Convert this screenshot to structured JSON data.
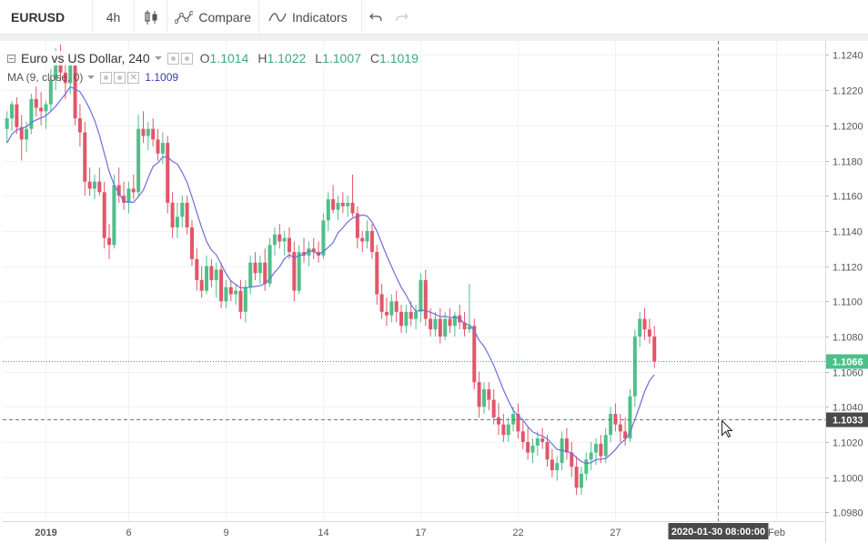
{
  "toolbar": {
    "symbol": "EURUSD",
    "interval": "4h",
    "compare_label": "Compare",
    "indicators_label": "Indicators",
    "undo_icon": "undo-icon",
    "redo_icon": "redo-icon"
  },
  "legend": {
    "title": "Euro vs US Dollar, 240",
    "open_key": "O",
    "open": "1.1014",
    "high_key": "H",
    "high": "1.1022",
    "low_key": "L",
    "low": "1.1007",
    "close_key": "C",
    "close": "1.1019",
    "ma_label": "MA (9, close, 0)",
    "ma_value": "1.1009"
  },
  "colors": {
    "up": "#4fbf8a",
    "down": "#e2566a",
    "ma": "#6b6fd8",
    "last_price_line": "#3caa5a",
    "crosshair": "#777777"
  },
  "chart_data": {
    "type": "candlestick",
    "symbol": "EURUSD",
    "timeframe": "4h",
    "ylim": [
      1.0975,
      1.1248
    ],
    "y_ticks": [
      "1.1240",
      "1.1220",
      "1.1200",
      "1.1180",
      "1.1160",
      "1.1140",
      "1.1120",
      "1.1100",
      "1.1080",
      "1.1060",
      "1.1040",
      "1.1020",
      "1.1000",
      "1.0980"
    ],
    "x_ticks": [
      {
        "label": "2019",
        "bar": 8,
        "bold": true
      },
      {
        "label": "6",
        "bar": 25
      },
      {
        "label": "9",
        "bar": 45
      },
      {
        "label": "14",
        "bar": 65
      },
      {
        "label": "17",
        "bar": 85
      },
      {
        "label": "22",
        "bar": 105
      },
      {
        "label": "27",
        "bar": 125
      },
      {
        "label": "Feb",
        "bar": 158
      }
    ],
    "last_price": 1.1066,
    "last_price_label": "1.1066",
    "crosshair": {
      "bar": 146,
      "price": 1.1033,
      "price_label": "1.1033",
      "time_label": "2020-01-30 08:00:00"
    },
    "ohlc": [
      [
        1.1198,
        1.1208,
        1.119,
        1.1204
      ],
      [
        1.1204,
        1.1214,
        1.1197,
        1.1212
      ],
      [
        1.1212,
        1.1216,
        1.1195,
        1.1199
      ],
      [
        1.1199,
        1.1206,
        1.118,
        1.1192
      ],
      [
        1.1192,
        1.1202,
        1.1185,
        1.1198
      ],
      [
        1.1198,
        1.1218,
        1.1195,
        1.1215
      ],
      [
        1.1215,
        1.1222,
        1.1205,
        1.121
      ],
      [
        1.121,
        1.1219,
        1.12,
        1.1208
      ],
      [
        1.1208,
        1.1214,
        1.1198,
        1.1212
      ],
      [
        1.1212,
        1.1232,
        1.1208,
        1.1226
      ],
      [
        1.1226,
        1.1244,
        1.122,
        1.1238
      ],
      [
        1.1238,
        1.1246,
        1.1225,
        1.123
      ],
      [
        1.123,
        1.1235,
        1.1215,
        1.1224
      ],
      [
        1.1224,
        1.1238,
        1.1218,
        1.1234
      ],
      [
        1.1234,
        1.124,
        1.12,
        1.1204
      ],
      [
        1.1204,
        1.1212,
        1.1188,
        1.1196
      ],
      [
        1.1196,
        1.1202,
        1.116,
        1.1168
      ],
      [
        1.1168,
        1.1176,
        1.116,
        1.1164
      ],
      [
        1.1164,
        1.1172,
        1.1158,
        1.1168
      ],
      [
        1.1168,
        1.1176,
        1.116,
        1.1162
      ],
      [
        1.1162,
        1.1168,
        1.113,
        1.1136
      ],
      [
        1.1136,
        1.1144,
        1.1124,
        1.1132
      ],
      [
        1.1132,
        1.1172,
        1.113,
        1.1166
      ],
      [
        1.1166,
        1.1176,
        1.1156,
        1.116
      ],
      [
        1.116,
        1.1168,
        1.1152,
        1.1156
      ],
      [
        1.1156,
        1.1168,
        1.115,
        1.1164
      ],
      [
        1.1164,
        1.1172,
        1.1158,
        1.1162
      ],
      [
        1.1162,
        1.1206,
        1.116,
        1.1198
      ],
      [
        1.1198,
        1.1208,
        1.119,
        1.1194
      ],
      [
        1.1194,
        1.1202,
        1.1186,
        1.1198
      ],
      [
        1.1198,
        1.1204,
        1.1188,
        1.1192
      ],
      [
        1.1192,
        1.1198,
        1.118,
        1.1184
      ],
      [
        1.1184,
        1.1196,
        1.1178,
        1.119
      ],
      [
        1.119,
        1.1194,
        1.115,
        1.1156
      ],
      [
        1.1156,
        1.1162,
        1.1136,
        1.1142
      ],
      [
        1.1142,
        1.1156,
        1.1136,
        1.1148
      ],
      [
        1.1148,
        1.116,
        1.1142,
        1.1156
      ],
      [
        1.1156,
        1.116,
        1.1138,
        1.1142
      ],
      [
        1.1142,
        1.1146,
        1.112,
        1.1124
      ],
      [
        1.1124,
        1.113,
        1.1106,
        1.1112
      ],
      [
        1.1112,
        1.112,
        1.1102,
        1.1106
      ],
      [
        1.1106,
        1.1126,
        1.1104,
        1.112
      ],
      [
        1.112,
        1.1124,
        1.1108,
        1.1112
      ],
      [
        1.1112,
        1.1122,
        1.1102,
        1.1118
      ],
      [
        1.1118,
        1.1122,
        1.1096,
        1.11
      ],
      [
        1.11,
        1.1112,
        1.1096,
        1.1108
      ],
      [
        1.1108,
        1.1112,
        1.11,
        1.1104
      ],
      [
        1.1104,
        1.111,
        1.1098,
        1.1106
      ],
      [
        1.1106,
        1.1112,
        1.109,
        1.1094
      ],
      [
        1.1094,
        1.1112,
        1.1088,
        1.1108
      ],
      [
        1.1108,
        1.1126,
        1.1104,
        1.1122
      ],
      [
        1.1122,
        1.1128,
        1.1112,
        1.1116
      ],
      [
        1.1116,
        1.1126,
        1.111,
        1.1122
      ],
      [
        1.1122,
        1.113,
        1.1106,
        1.111
      ],
      [
        1.111,
        1.1136,
        1.1108,
        1.1132
      ],
      [
        1.1132,
        1.1142,
        1.1126,
        1.1138
      ],
      [
        1.1138,
        1.1144,
        1.113,
        1.1134
      ],
      [
        1.1134,
        1.114,
        1.1126,
        1.1136
      ],
      [
        1.1136,
        1.1142,
        1.1124,
        1.1128
      ],
      [
        1.1128,
        1.1134,
        1.11,
        1.1106
      ],
      [
        1.1106,
        1.1132,
        1.1104,
        1.1128
      ],
      [
        1.1128,
        1.1136,
        1.1122,
        1.1126
      ],
      [
        1.1126,
        1.1134,
        1.112,
        1.113
      ],
      [
        1.113,
        1.1136,
        1.1124,
        1.1128
      ],
      [
        1.1128,
        1.1134,
        1.1122,
        1.1126
      ],
      [
        1.1126,
        1.115,
        1.1124,
        1.1146
      ],
      [
        1.1146,
        1.1162,
        1.114,
        1.1158
      ],
      [
        1.1158,
        1.1166,
        1.115,
        1.1152
      ],
      [
        1.1152,
        1.116,
        1.1146,
        1.1156
      ],
      [
        1.1156,
        1.1162,
        1.115,
        1.1154
      ],
      [
        1.1154,
        1.116,
        1.1148,
        1.1156
      ],
      [
        1.1156,
        1.1172,
        1.1148,
        1.115
      ],
      [
        1.115,
        1.1154,
        1.113,
        1.1136
      ],
      [
        1.1136,
        1.114,
        1.1128,
        1.1134
      ],
      [
        1.1134,
        1.1146,
        1.113,
        1.114
      ],
      [
        1.114,
        1.1144,
        1.1124,
        1.1128
      ],
      [
        1.1128,
        1.1132,
        1.1098,
        1.1104
      ],
      [
        1.1104,
        1.111,
        1.109,
        1.1094
      ],
      [
        1.1094,
        1.1102,
        1.1086,
        1.1092
      ],
      [
        1.1092,
        1.1104,
        1.1088,
        1.11
      ],
      [
        1.11,
        1.1106,
        1.1088,
        1.1094
      ],
      [
        1.1094,
        1.1098,
        1.1082,
        1.1086
      ],
      [
        1.1086,
        1.1098,
        1.1082,
        1.1094
      ],
      [
        1.1094,
        1.11,
        1.1086,
        1.109
      ],
      [
        1.109,
        1.1098,
        1.1084,
        1.1094
      ],
      [
        1.1094,
        1.1116,
        1.1088,
        1.1112
      ],
      [
        1.1112,
        1.1118,
        1.1086,
        1.109
      ],
      [
        1.109,
        1.1096,
        1.108,
        1.1084
      ],
      [
        1.1084,
        1.1094,
        1.108,
        1.109
      ],
      [
        1.109,
        1.1096,
        1.1076,
        1.108
      ],
      [
        1.108,
        1.1094,
        1.1078,
        1.109
      ],
      [
        1.109,
        1.1096,
        1.1082,
        1.1086
      ],
      [
        1.1086,
        1.1094,
        1.108,
        1.1092
      ],
      [
        1.1092,
        1.1098,
        1.1084,
        1.1088
      ],
      [
        1.1088,
        1.1094,
        1.108,
        1.1084
      ],
      [
        1.1084,
        1.111,
        1.1082,
        1.1086
      ],
      [
        1.1086,
        1.109,
        1.105,
        1.1054
      ],
      [
        1.1054,
        1.106,
        1.1034,
        1.104
      ],
      [
        1.104,
        1.1054,
        1.1036,
        1.105
      ],
      [
        1.105,
        1.1054,
        1.1038,
        1.1044
      ],
      [
        1.1044,
        1.105,
        1.103,
        1.1034
      ],
      [
        1.1034,
        1.1042,
        1.1024,
        1.103
      ],
      [
        1.103,
        1.1036,
        1.102,
        1.1024
      ],
      [
        1.1024,
        1.1034,
        1.102,
        1.103
      ],
      [
        1.103,
        1.104,
        1.1026,
        1.1036
      ],
      [
        1.1036,
        1.1042,
        1.1022,
        1.1026
      ],
      [
        1.1026,
        1.1032,
        1.1016,
        1.102
      ],
      [
        1.102,
        1.1028,
        1.101,
        1.1014
      ],
      [
        1.1014,
        1.1022,
        1.1008,
        1.1018
      ],
      [
        1.1018,
        1.1026,
        1.1012,
        1.1022
      ],
      [
        1.1022,
        1.1028,
        1.1016,
        1.102
      ],
      [
        1.102,
        1.1024,
        1.1006,
        1.101
      ],
      [
        1.101,
        1.1016,
        1.1,
        1.1004
      ],
      [
        1.1004,
        1.1012,
        1.0998,
        1.1008
      ],
      [
        1.1008,
        1.1026,
        1.1004,
        1.1022
      ],
      [
        1.1022,
        1.1028,
        1.101,
        1.1014
      ],
      [
        1.1014,
        1.102,
        1.1,
        1.1006
      ],
      [
        1.1006,
        1.1012,
        1.099,
        1.0994
      ],
      [
        1.0994,
        1.1006,
        1.099,
        1.1002
      ],
      [
        1.1002,
        1.1014,
        1.0998,
        1.101
      ],
      [
        1.101,
        1.102,
        1.1004,
        1.1014
      ],
      [
        1.1014,
        1.1022,
        1.1007,
        1.1019
      ],
      [
        1.1019,
        1.1024,
        1.1008,
        1.1012
      ],
      [
        1.1012,
        1.1028,
        1.1008,
        1.1024
      ],
      [
        1.1024,
        1.104,
        1.102,
        1.1036
      ],
      [
        1.1036,
        1.1042,
        1.1026,
        1.103
      ],
      [
        1.103,
        1.1036,
        1.102,
        1.1026
      ],
      [
        1.1026,
        1.1034,
        1.1018,
        1.1022
      ],
      [
        1.1022,
        1.105,
        1.102,
        1.1046
      ],
      [
        1.1046,
        1.1084,
        1.104,
        1.108
      ],
      [
        1.108,
        1.1094,
        1.1074,
        1.109
      ],
      [
        1.109,
        1.1096,
        1.1078,
        1.1084
      ],
      [
        1.1084,
        1.109,
        1.1076,
        1.108
      ],
      [
        1.108,
        1.1086,
        1.1062,
        1.1066
      ]
    ]
  }
}
